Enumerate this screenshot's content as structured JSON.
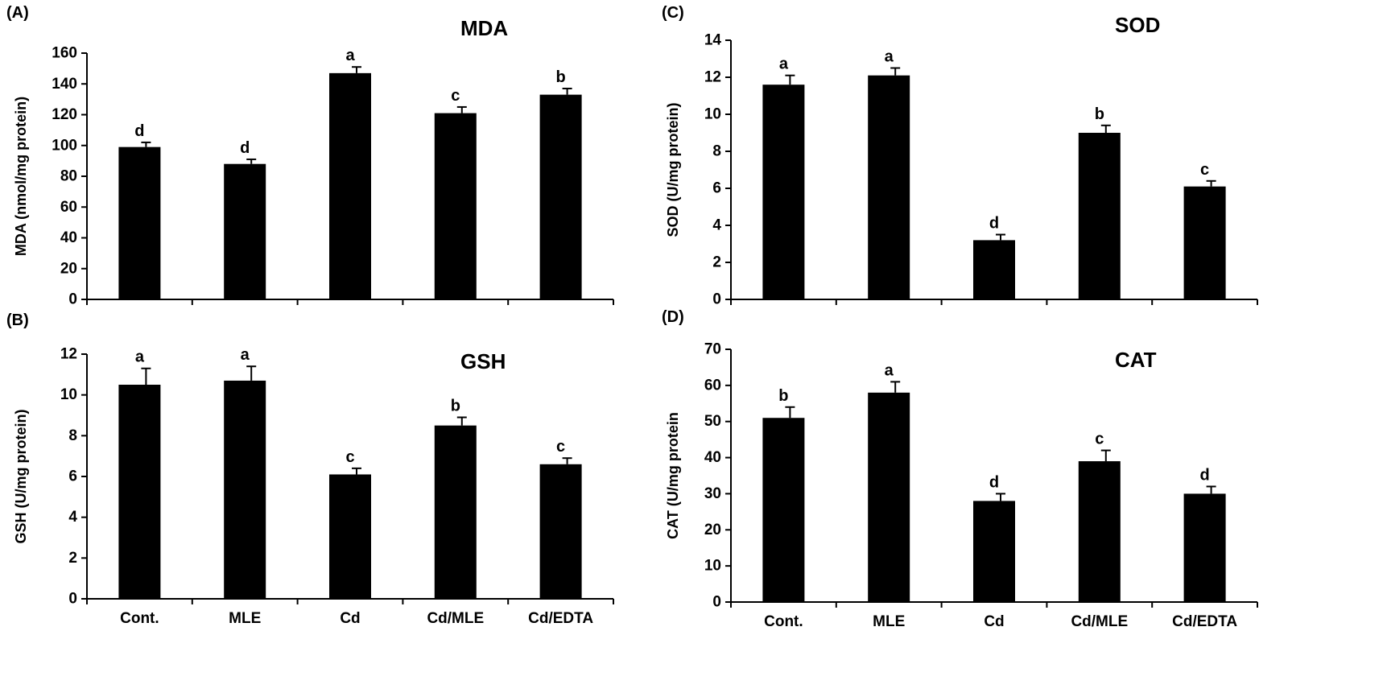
{
  "chart_data": [
    {
      "panel": "(A)",
      "type": "bar",
      "title": "MDA",
      "ylabel": "MDA (nmol/mg protein)",
      "xlabel": "",
      "categories": [
        "Cont.",
        "MLE",
        "Cd",
        "Cd/MLE",
        "Cd/EDTA"
      ],
      "values": [
        99,
        88,
        147,
        121,
        133
      ],
      "errors": [
        3,
        3,
        4,
        4,
        4
      ],
      "letters": [
        "d",
        "d",
        "a",
        "c",
        "b"
      ],
      "ylim": [
        0,
        160
      ],
      "yticks": [
        "0",
        "20",
        "40",
        "60",
        "80",
        "100",
        "120",
        "140",
        "160"
      ],
      "show_xticks": false
    },
    {
      "panel": "(B)",
      "type": "bar",
      "title": "GSH",
      "ylabel": "GSH (U/mg protein)",
      "xlabel": "",
      "categories": [
        "Cont.",
        "MLE",
        "Cd",
        "Cd/MLE",
        "Cd/EDTA"
      ],
      "values": [
        10.5,
        10.7,
        6.1,
        8.5,
        6.6
      ],
      "errors": [
        0.8,
        0.7,
        0.3,
        0.4,
        0.3
      ],
      "letters": [
        "a",
        "a",
        "c",
        "b",
        "c"
      ],
      "ylim": [
        0,
        12
      ],
      "yticks": [
        "0",
        "2",
        "4",
        "6",
        "8",
        "10",
        "12"
      ],
      "show_xticks": true
    },
    {
      "panel": "(C)",
      "type": "bar",
      "title": "SOD",
      "ylabel": "SOD (U/mg protein)",
      "xlabel": "",
      "categories": [
        "Cont.",
        "MLE",
        "Cd",
        "Cd/MLE",
        "Cd/EDTA"
      ],
      "values": [
        11.6,
        12.1,
        3.2,
        9.0,
        6.1
      ],
      "errors": [
        0.5,
        0.4,
        0.3,
        0.4,
        0.3
      ],
      "letters": [
        "a",
        "a",
        "d",
        "b",
        "c"
      ],
      "ylim": [
        0,
        14
      ],
      "yticks": [
        "0",
        "2",
        "4",
        "6",
        "8",
        "10",
        "12",
        "14"
      ],
      "show_xticks": false
    },
    {
      "panel": "(D)",
      "type": "bar",
      "title": "CAT",
      "ylabel": "CAT (U/mg protein",
      "xlabel": "",
      "categories": [
        "Cont.",
        "MLE",
        "Cd",
        "Cd/MLE",
        "Cd/EDTA"
      ],
      "values": [
        51,
        58,
        28,
        39,
        30
      ],
      "errors": [
        3,
        3,
        2,
        3,
        2
      ],
      "letters": [
        "b",
        "a",
        "d",
        "c",
        "d"
      ],
      "ylim": [
        0,
        70
      ],
      "yticks": [
        "0",
        "10",
        "20",
        "30",
        "40",
        "50",
        "60",
        "70"
      ],
      "show_xticks": true
    }
  ],
  "colors": {
    "bar": "#000000",
    "axis": "#000000",
    "background": "#ffffff"
  }
}
